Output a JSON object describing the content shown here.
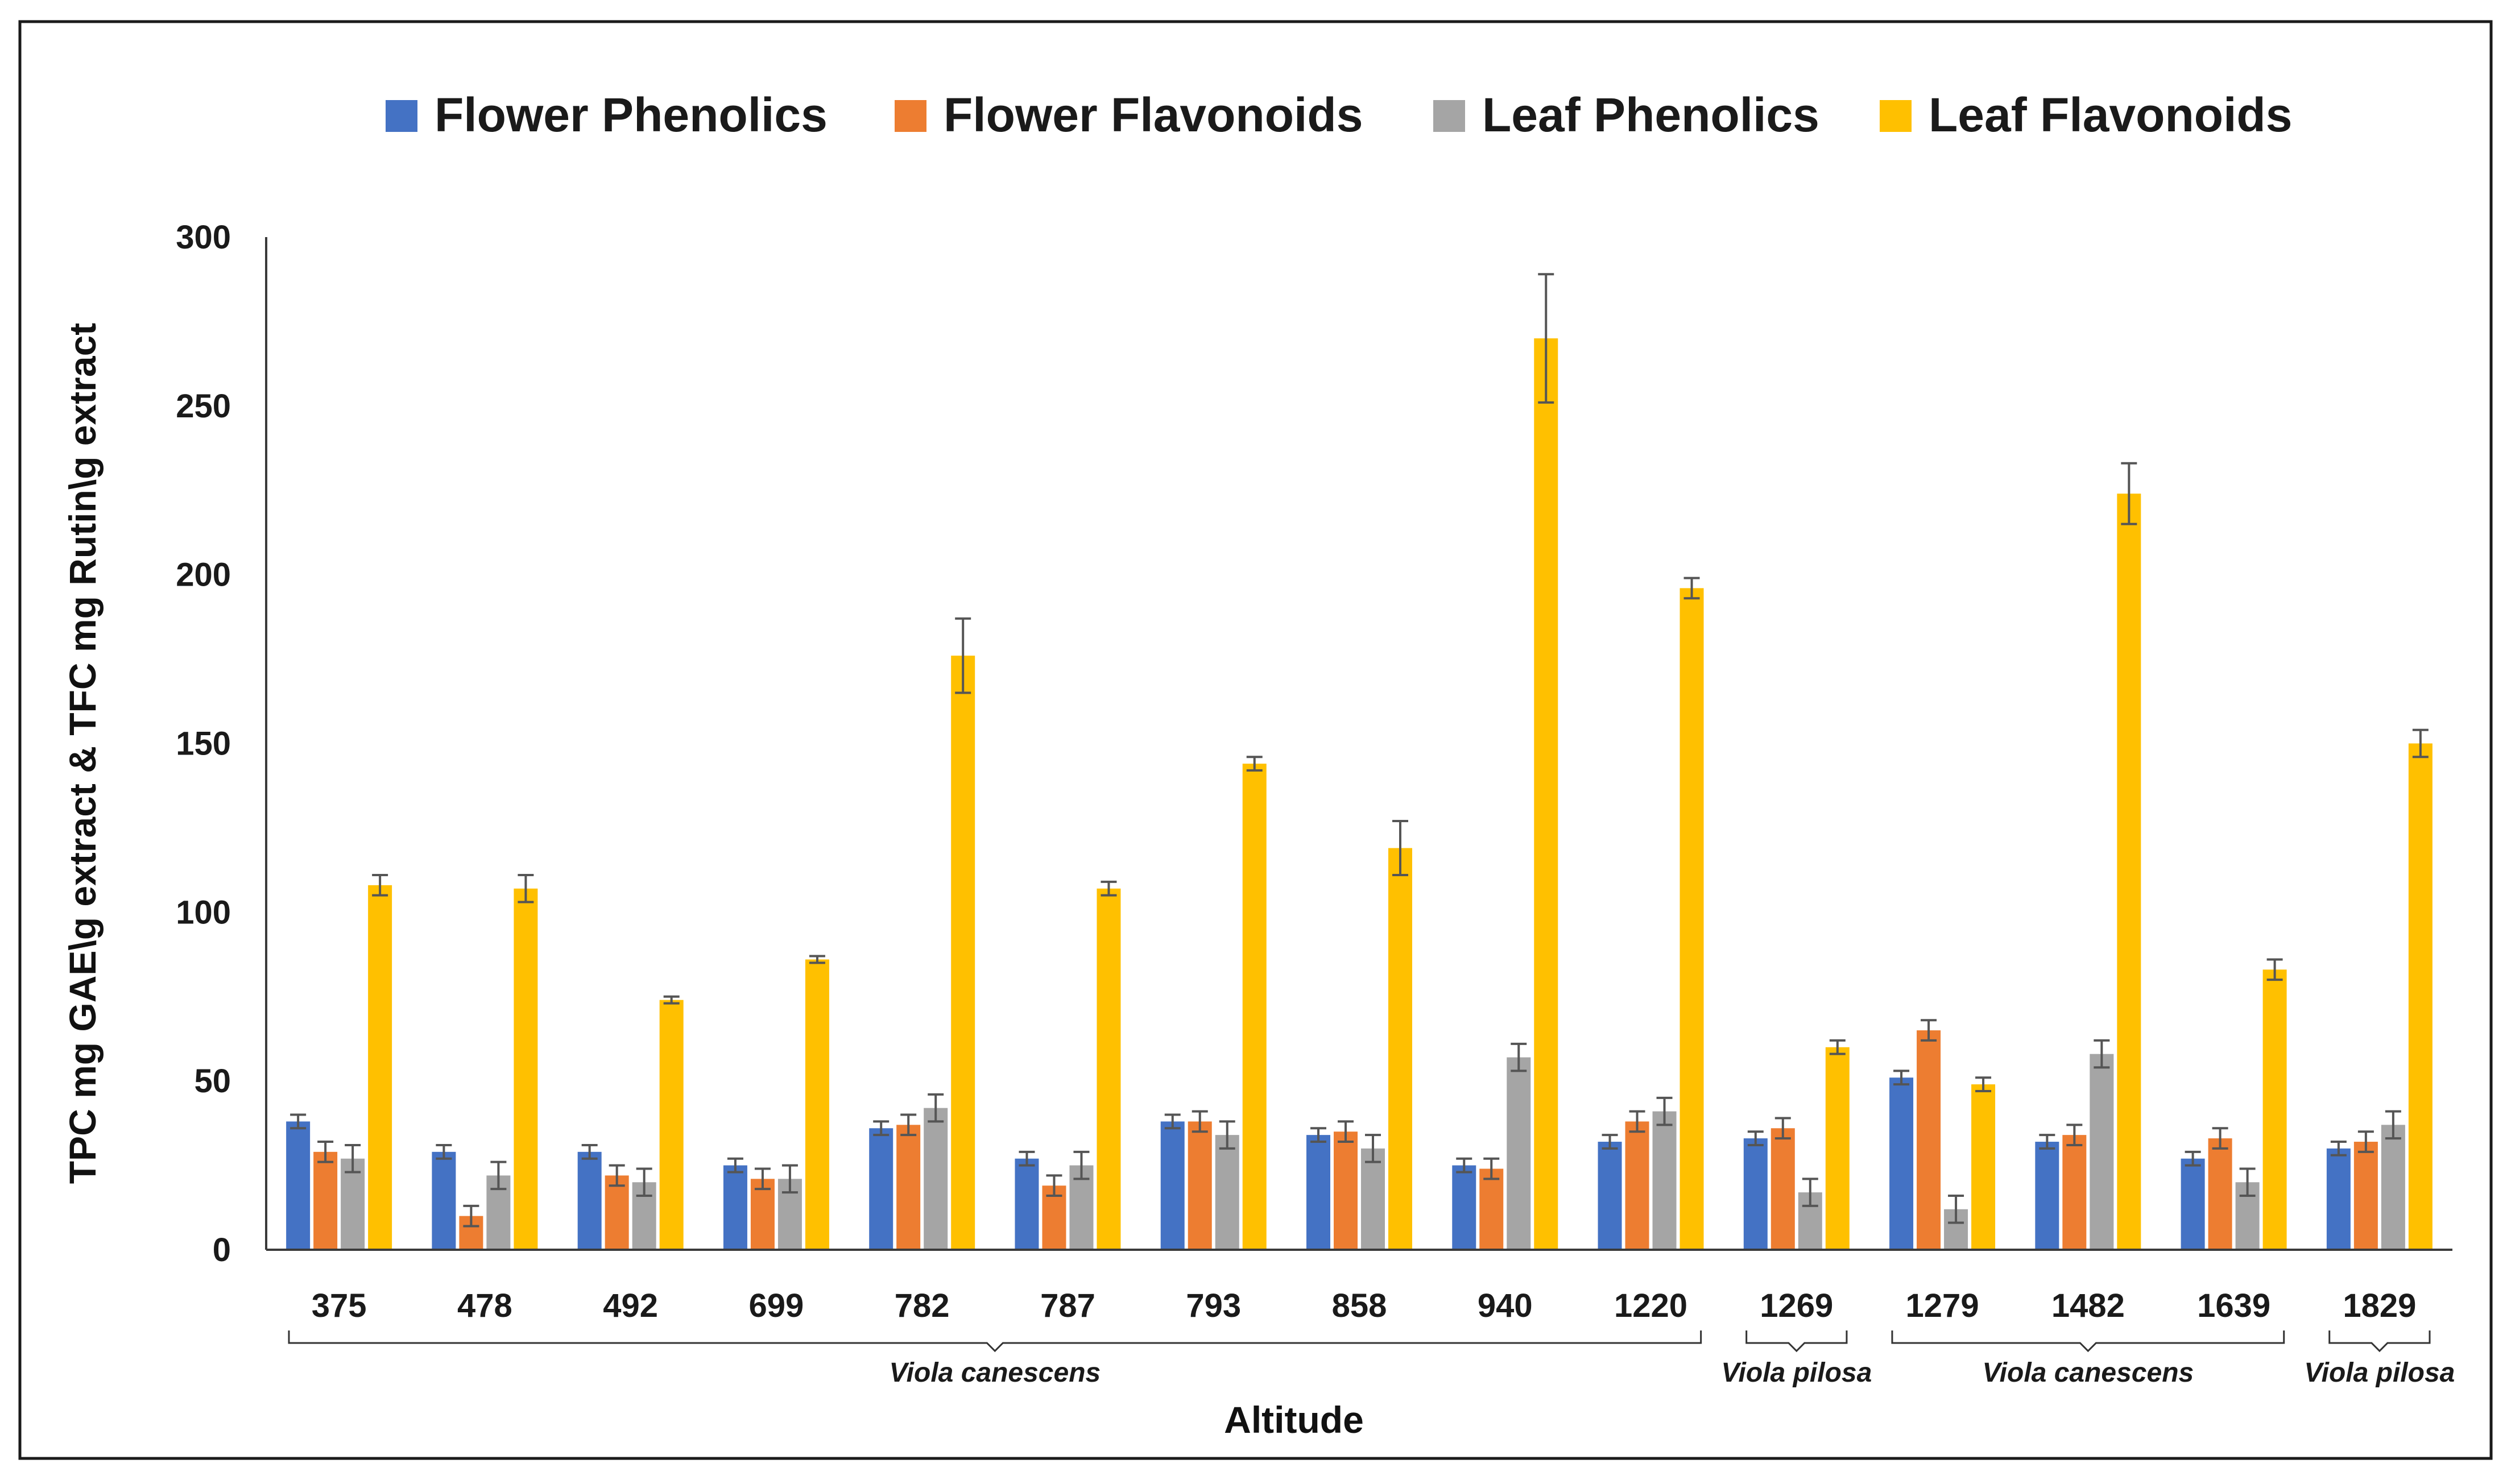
{
  "chart_data": {
    "type": "bar",
    "title": "",
    "xlabel": "Altitude",
    "ylabel": "TPC  mg GAE\\g extract & TFC mg Rutin\\g extract",
    "ylim": [
      0,
      300
    ],
    "yticks": [
      0,
      50,
      100,
      150,
      200,
      250,
      300
    ],
    "legend_position": "top",
    "categories": [
      "375",
      "478",
      "492",
      "699",
      "782",
      "787",
      "793",
      "858",
      "940",
      "1220",
      "1269",
      "1279",
      "1482",
      "1639",
      "1829"
    ],
    "series": [
      {
        "name": "Flower Phenolics",
        "color": "#4472C4",
        "values": [
          38,
          29,
          29,
          25,
          36,
          27,
          38,
          34,
          25,
          32,
          33,
          51,
          32,
          27,
          30
        ],
        "errors": [
          2,
          2,
          2,
          2,
          2,
          2,
          2,
          2,
          2,
          2,
          2,
          2,
          2,
          2,
          2
        ]
      },
      {
        "name": "Flower Flavonoids",
        "color": "#ED7D31",
        "values": [
          29,
          10,
          22,
          21,
          37,
          19,
          38,
          35,
          24,
          38,
          36,
          65,
          34,
          33,
          32
        ],
        "errors": [
          3,
          3,
          3,
          3,
          3,
          3,
          3,
          3,
          3,
          3,
          3,
          3,
          3,
          3,
          3
        ]
      },
      {
        "name": "Leaf Phenolics",
        "color": "#A5A5A5",
        "values": [
          27,
          22,
          20,
          21,
          42,
          25,
          34,
          30,
          57,
          41,
          17,
          12,
          58,
          20,
          37
        ],
        "errors": [
          4,
          4,
          4,
          4,
          4,
          4,
          4,
          4,
          4,
          4,
          4,
          4,
          4,
          4,
          4
        ]
      },
      {
        "name": "Leaf Flavonoids",
        "color": "#FFC000",
        "values": [
          108,
          107,
          74,
          86,
          176,
          107,
          144,
          119,
          270,
          196,
          60,
          49,
          224,
          83,
          150
        ],
        "errors": [
          3,
          4,
          1,
          1,
          11,
          2,
          2,
          8,
          19,
          3,
          2,
          2,
          9,
          3,
          4
        ]
      }
    ],
    "groups": [
      {
        "label": "Viola canescens",
        "from": 0,
        "to": 9
      },
      {
        "label": "Viola pilosa",
        "from": 10,
        "to": 10
      },
      {
        "label": "Viola canescens",
        "from": 11,
        "to": 13
      },
      {
        "label": "Viola pilosa",
        "from": 14,
        "to": 14
      }
    ]
  }
}
